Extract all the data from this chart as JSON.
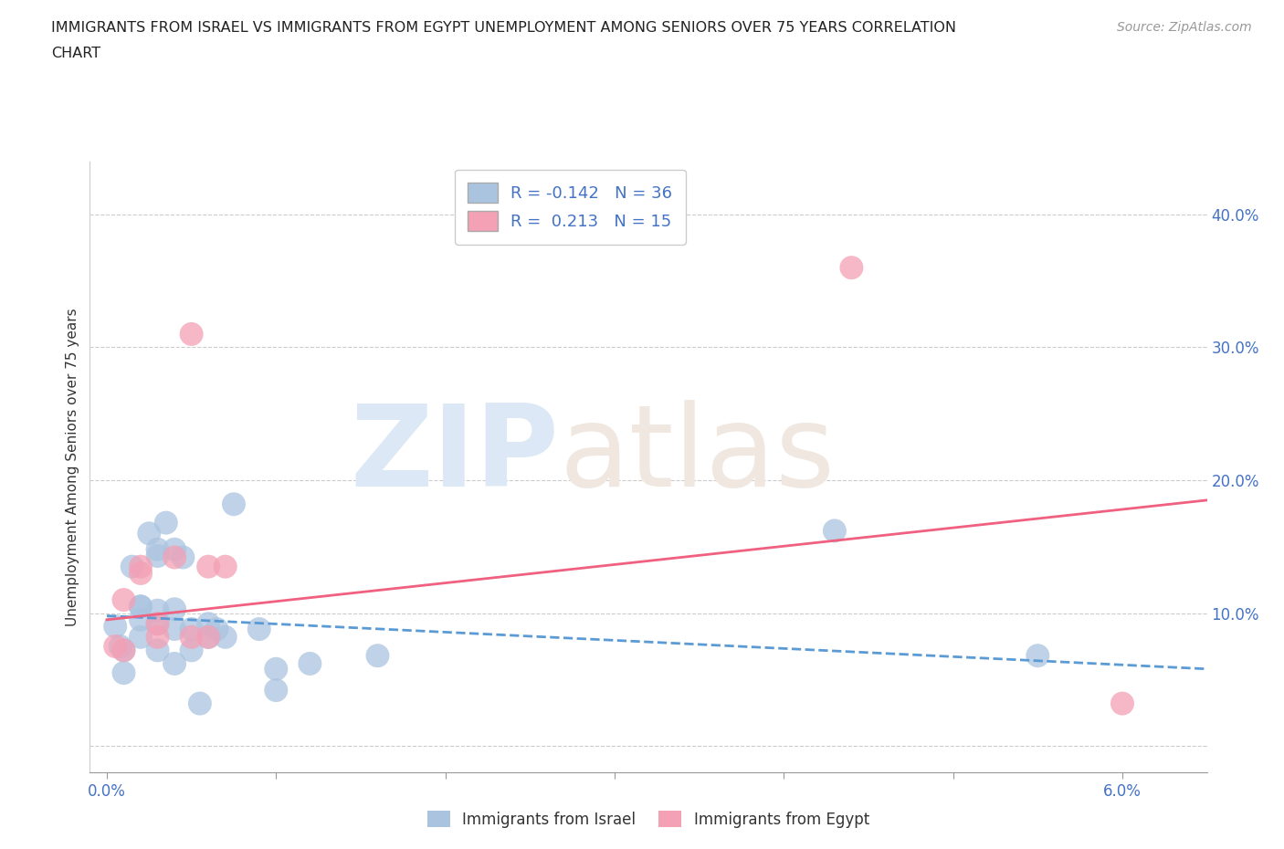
{
  "title_line1": "IMMIGRANTS FROM ISRAEL VS IMMIGRANTS FROM EGYPT UNEMPLOYMENT AMONG SENIORS OVER 75 YEARS CORRELATION",
  "title_line2": "CHART",
  "source": "Source: ZipAtlas.com",
  "ylabel": "Unemployment Among Seniors over 75 years",
  "xlabel_ticks": [
    "0.0%",
    "",
    "",
    "",
    "",
    "",
    "6.0%"
  ],
  "xlabel_vals": [
    0.0,
    0.01,
    0.02,
    0.03,
    0.04,
    0.05,
    0.06
  ],
  "ylabel_ticks": [
    "",
    "10.0%",
    "20.0%",
    "30.0%",
    "40.0%"
  ],
  "ylabel_vals": [
    0.0,
    0.1,
    0.2,
    0.3,
    0.4
  ],
  "xlim": [
    -0.001,
    0.065
  ],
  "ylim": [
    -0.02,
    0.44
  ],
  "israel_color": "#aac4e0",
  "egypt_color": "#f4a0b5",
  "israel_R": -0.142,
  "israel_N": 36,
  "egypt_R": 0.213,
  "egypt_N": 15,
  "israel_x": [
    0.0005,
    0.0008,
    0.001,
    0.001,
    0.0015,
    0.002,
    0.002,
    0.002,
    0.002,
    0.0025,
    0.003,
    0.003,
    0.003,
    0.003,
    0.003,
    0.0035,
    0.004,
    0.004,
    0.004,
    0.004,
    0.0045,
    0.005,
    0.005,
    0.0055,
    0.006,
    0.006,
    0.0065,
    0.007,
    0.0075,
    0.009,
    0.01,
    0.01,
    0.012,
    0.016,
    0.043,
    0.055
  ],
  "israel_y": [
    0.09,
    0.075,
    0.072,
    0.055,
    0.135,
    0.105,
    0.105,
    0.095,
    0.082,
    0.16,
    0.148,
    0.143,
    0.102,
    0.092,
    0.072,
    0.168,
    0.148,
    0.103,
    0.088,
    0.062,
    0.142,
    0.088,
    0.072,
    0.032,
    0.092,
    0.082,
    0.088,
    0.082,
    0.182,
    0.088,
    0.058,
    0.042,
    0.062,
    0.068,
    0.162,
    0.068
  ],
  "egypt_x": [
    0.0005,
    0.001,
    0.001,
    0.002,
    0.002,
    0.003,
    0.003,
    0.004,
    0.005,
    0.005,
    0.006,
    0.006,
    0.007,
    0.044,
    0.06
  ],
  "egypt_y": [
    0.075,
    0.11,
    0.072,
    0.135,
    0.13,
    0.092,
    0.082,
    0.142,
    0.31,
    0.082,
    0.135,
    0.082,
    0.135,
    0.36,
    0.032
  ],
  "israel_line_x": [
    0.0,
    0.065
  ],
  "israel_line_y": [
    0.098,
    0.058
  ],
  "egypt_line_x": [
    0.0,
    0.065
  ],
  "egypt_line_y": [
    0.095,
    0.185
  ]
}
